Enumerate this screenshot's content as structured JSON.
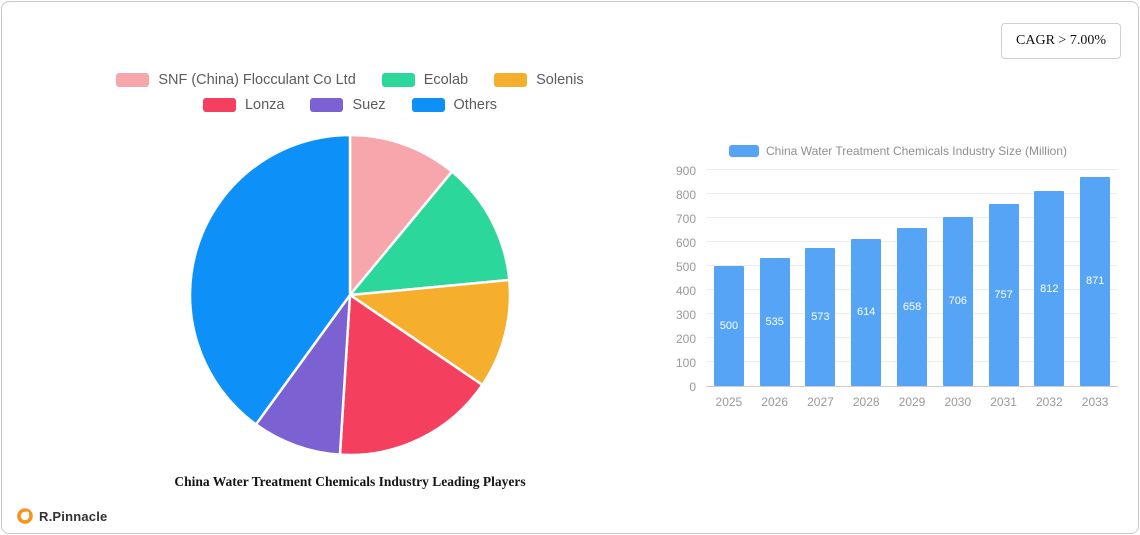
{
  "cagr_badge": "CAGR > 7.00%",
  "brand": {
    "name": "R.Pinnacle"
  },
  "chart_data": [
    {
      "type": "pie",
      "title": "China Water Treatment Chemicals Industry Leading Players",
      "legend_position": "top",
      "legend_rows": [
        [
          0,
          1,
          2
        ],
        [
          3,
          4,
          5
        ]
      ],
      "start_angle_deg": 0,
      "direction": "clockwise",
      "values_note": "percent share estimated from slice angles",
      "series": [
        {
          "name": "SNF (China) Flocculant Co Ltd",
          "value": 11,
          "color": "#F7A6AC"
        },
        {
          "name": "Ecolab",
          "value": 12.5,
          "color": "#2BD79A"
        },
        {
          "name": "Solenis",
          "value": 11,
          "color": "#F5AF2D"
        },
        {
          "name": "Lonza",
          "value": 16.5,
          "color": "#F43F5E"
        },
        {
          "name": "Suez",
          "value": 9,
          "color": "#7B61D1"
        },
        {
          "name": "Others",
          "value": 40,
          "color": "#0E90F9"
        }
      ]
    },
    {
      "type": "bar",
      "legend": "China Water Treatment Chemicals Industry Size (Million)",
      "categories": [
        "2025",
        "2026",
        "2027",
        "2028",
        "2029",
        "2030",
        "2031",
        "2032",
        "2033"
      ],
      "values": [
        500,
        535,
        573,
        614,
        658,
        706,
        757,
        812,
        871
      ],
      "ylim": [
        0,
        900
      ],
      "ytick_step": 100,
      "bar_color": "#55A4F6",
      "grid": true,
      "value_labels_position": "inside-middle"
    }
  ]
}
